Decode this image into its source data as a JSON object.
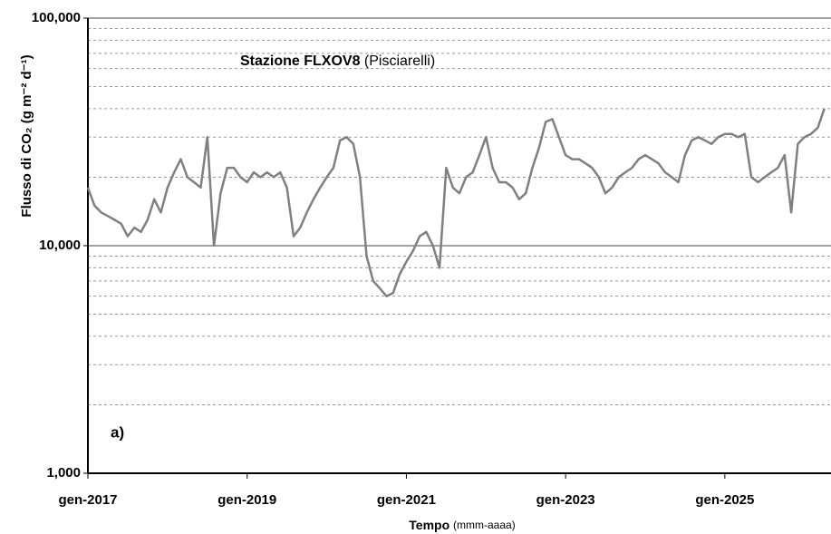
{
  "chart_data": {
    "type": "line",
    "title": "Stazione FLXOV8",
    "subtitle": "(Pisciarelli)",
    "ylabel": "Flusso di CO₂ (g m⁻² d⁻¹)",
    "xlabel": "Tempo",
    "xlabel_note": "(mmm-aaaa)",
    "annotation": "a)",
    "log_y": true,
    "grid": true,
    "ylim": [
      1000,
      100000
    ],
    "yticks": [
      {
        "value": 1000,
        "label": "1,000"
      },
      {
        "value": 10000,
        "label": "10,000"
      },
      {
        "value": 100000,
        "label": "100,000"
      }
    ],
    "minor_yticks": [
      2000,
      3000,
      4000,
      5000,
      6000,
      7000,
      8000,
      9000,
      20000,
      30000,
      40000,
      50000,
      60000,
      70000,
      80000,
      90000
    ],
    "xlim": [
      "2017-01",
      "2026-05"
    ],
    "xticks": [
      {
        "value": "2017-01",
        "label": "gen-2017"
      },
      {
        "value": "2019-01",
        "label": "gen-2019"
      },
      {
        "value": "2021-01",
        "label": "gen-2021"
      },
      {
        "value": "2023-01",
        "label": "gen-2023"
      },
      {
        "value": "2025-01",
        "label": "gen-2025"
      }
    ],
    "x": [
      "2017-01",
      "2017-02",
      "2017-03",
      "2017-04",
      "2017-05",
      "2017-06",
      "2017-07",
      "2017-08",
      "2017-09",
      "2017-10",
      "2017-11",
      "2017-12",
      "2018-01",
      "2018-02",
      "2018-03",
      "2018-04",
      "2018-05",
      "2018-06",
      "2018-07",
      "2018-08",
      "2018-09",
      "2018-10",
      "2018-11",
      "2018-12",
      "2019-01",
      "2019-02",
      "2019-03",
      "2019-04",
      "2019-05",
      "2019-06",
      "2019-07",
      "2019-08",
      "2019-09",
      "2019-10",
      "2019-11",
      "2019-12",
      "2020-01",
      "2020-02",
      "2020-03",
      "2020-04",
      "2020-05",
      "2020-06",
      "2020-07",
      "2020-08",
      "2020-09",
      "2020-10",
      "2020-11",
      "2020-12",
      "2021-01",
      "2021-02",
      "2021-03",
      "2021-04",
      "2021-05",
      "2021-06",
      "2021-07",
      "2021-08",
      "2021-09",
      "2021-10",
      "2021-11",
      "2021-12",
      "2022-01",
      "2022-02",
      "2022-03",
      "2022-04",
      "2022-05",
      "2022-06",
      "2022-07",
      "2022-08",
      "2022-09",
      "2022-10",
      "2022-11",
      "2022-12",
      "2023-01",
      "2023-02",
      "2023-03",
      "2023-04",
      "2023-05",
      "2023-06",
      "2023-07",
      "2023-08",
      "2023-09",
      "2023-10",
      "2023-11",
      "2023-12",
      "2024-01",
      "2024-02",
      "2024-03",
      "2024-04",
      "2024-05",
      "2024-06",
      "2024-07",
      "2024-08",
      "2024-09",
      "2024-10",
      "2024-11",
      "2024-12",
      "2025-01",
      "2025-02",
      "2025-03",
      "2025-04",
      "2025-05",
      "2025-06",
      "2025-07",
      "2025-08",
      "2025-09",
      "2025-10",
      "2025-11",
      "2025-12",
      "2026-01",
      "2026-02",
      "2026-03",
      "2026-04"
    ],
    "series": [
      {
        "name": "FLXOV8",
        "color": "#808080",
        "values": [
          18000,
          15000,
          14000,
          13500,
          13000,
          12500,
          11000,
          12000,
          11500,
          13000,
          16000,
          14000,
          18000,
          21000,
          24000,
          20000,
          19000,
          18000,
          30000,
          10000,
          17000,
          22000,
          22000,
          20000,
          19000,
          21000,
          20000,
          21000,
          20000,
          21000,
          18000,
          11000,
          12000,
          14000,
          16000,
          18000,
          20000,
          22000,
          29000,
          30000,
          28000,
          20000,
          9000,
          7000,
          6500,
          6000,
          6200,
          7500,
          8500,
          9500,
          11000,
          11500,
          10000,
          8000,
          22000,
          18000,
          17000,
          20000,
          21000,
          25000,
          30000,
          22000,
          19000,
          19000,
          18000,
          16000,
          17000,
          22000,
          27000,
          35000,
          36000,
          30000,
          25000,
          24000,
          24000,
          23000,
          22000,
          20000,
          17000,
          18000,
          20000,
          21000,
          22000,
          24000,
          25000,
          24000,
          23000,
          21000,
          20000,
          19000,
          25000,
          29000,
          30000,
          29000,
          28000,
          30000,
          31000,
          31000,
          30000,
          31000,
          20000,
          19000,
          20000,
          21000,
          22000,
          25000,
          14000,
          28000,
          30000,
          31000,
          33000,
          40000
        ]
      }
    ]
  }
}
